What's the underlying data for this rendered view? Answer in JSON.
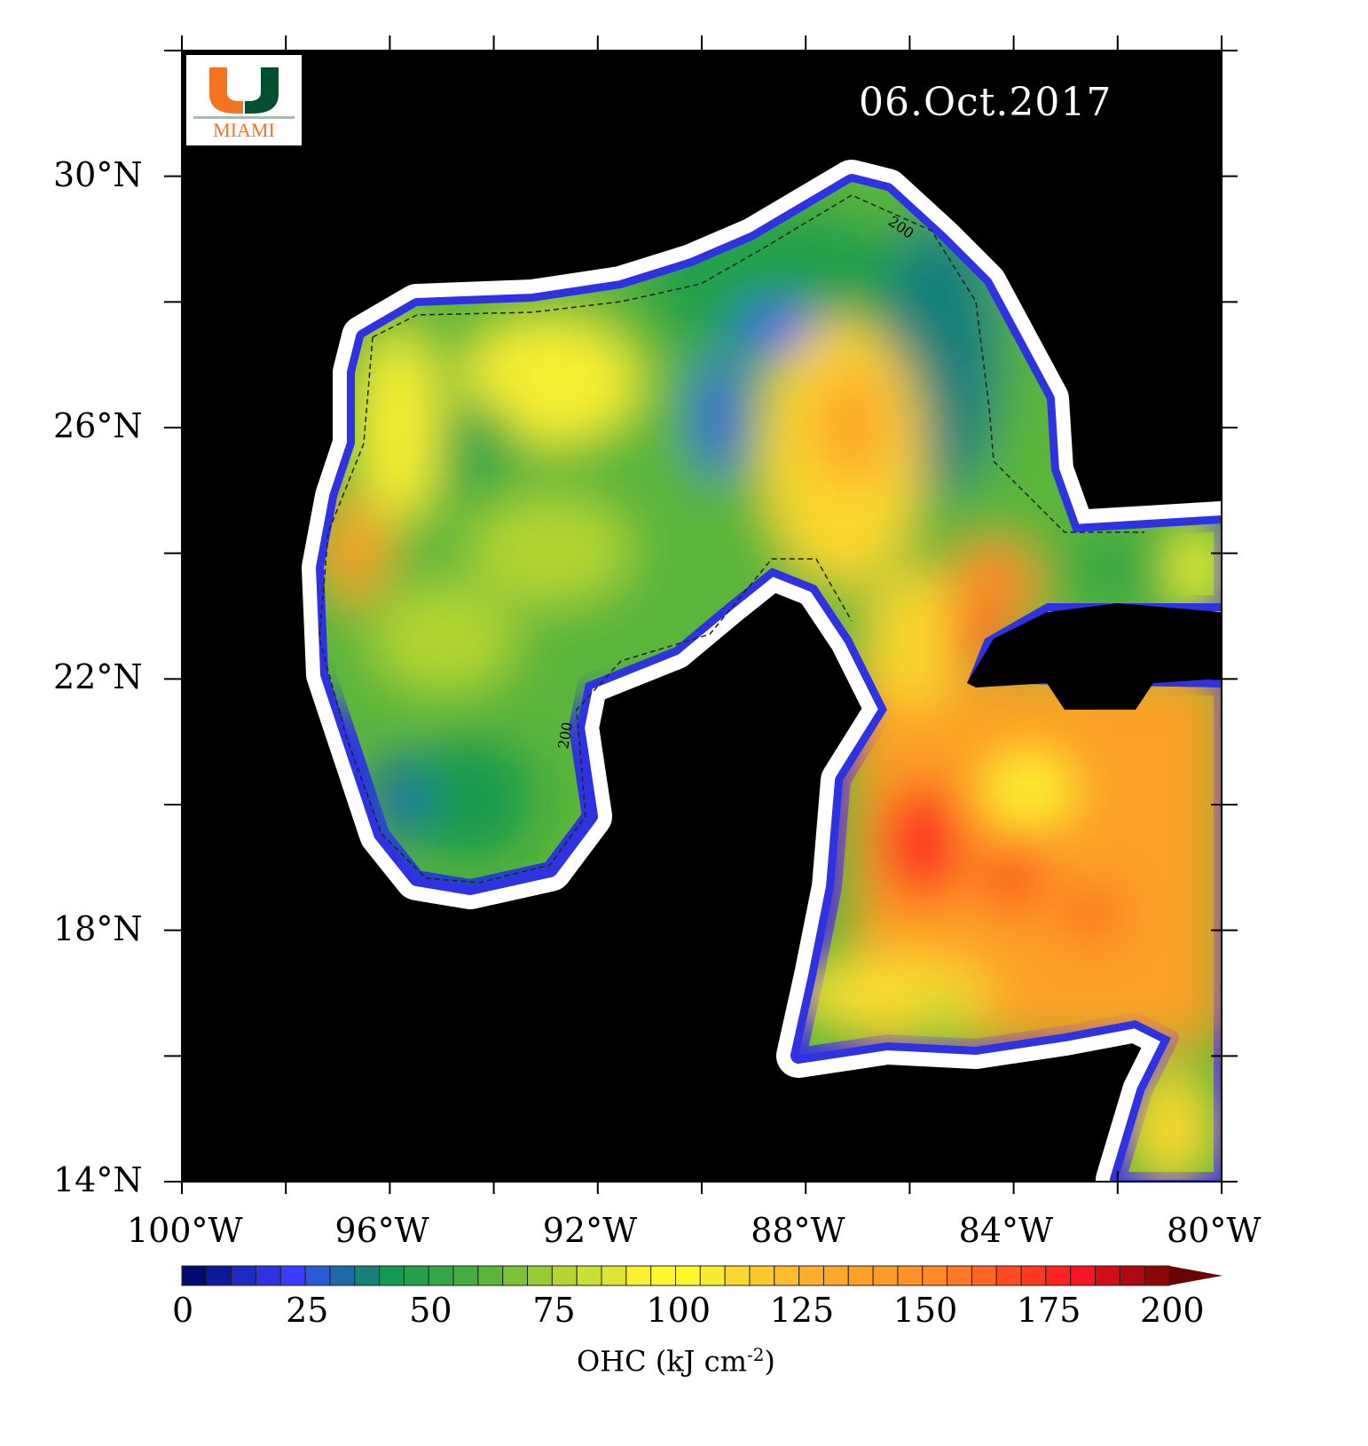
{
  "map": {
    "date_label": "06.Oct.2017",
    "extent": {
      "lon": [
        -100,
        -80
      ],
      "lat": [
        14,
        32
      ]
    },
    "lon_ticks": [
      -100,
      -98,
      -96,
      -94,
      -92,
      -90,
      -88,
      -86,
      -84,
      -82,
      -80
    ],
    "lon_labels": [
      {
        "lon": -100,
        "text": "100°W"
      },
      {
        "lon": -96,
        "text": "96°W"
      },
      {
        "lon": -92,
        "text": "92°W"
      },
      {
        "lon": -88,
        "text": "88°W"
      },
      {
        "lon": -84,
        "text": "84°W"
      },
      {
        "lon": -80,
        "text": "80°W"
      }
    ],
    "lat_ticks": [
      14,
      16,
      18,
      20,
      22,
      24,
      26,
      28,
      30
    ],
    "lat_labels": [
      {
        "lat": 30,
        "text": "30°N"
      },
      {
        "lat": 26,
        "text": "26°N"
      },
      {
        "lat": 22,
        "text": "22°N"
      },
      {
        "lat": 18,
        "text": "18°N"
      },
      {
        "lat": 14,
        "text": "14°N"
      }
    ],
    "contour_label": "200",
    "land_color": "#000000",
    "shelf_color": "#ffffff"
  },
  "logo": {
    "text": "MIAMI",
    "orange": "#f47321",
    "green": "#005030"
  },
  "colorbar": {
    "title": "OHC (kJ cm",
    "title_exp": "-2",
    "title_end": ")",
    "min": 0,
    "max": 200,
    "step": 5,
    "tick_labels": [
      "0",
      "25",
      "50",
      "75",
      "100",
      "125",
      "150",
      "175",
      "200"
    ],
    "colors": [
      "#000a70",
      "#0c1a9a",
      "#1e2ac4",
      "#2e32e0",
      "#3a3cff",
      "#2a5ad6",
      "#1e6aa8",
      "#18807a",
      "#129a50",
      "#23a048",
      "#34a645",
      "#46ac40",
      "#5ab53a",
      "#7cc236",
      "#98cc34",
      "#b4d632",
      "#cae032",
      "#dce434",
      "#f8f030",
      "#fcf830",
      "#fcf82c",
      "#f8ec30",
      "#fcd82e",
      "#fcc82c",
      "#fcbc2c",
      "#fcb02c",
      "#fca82a",
      "#fca028",
      "#fc9a28",
      "#fc9228",
      "#fc8a26",
      "#fc7a26",
      "#fc6424",
      "#fc4a22",
      "#fc3820",
      "#fc2420",
      "#f81420",
      "#d40c18",
      "#b00810",
      "#8c0808"
    ],
    "over_color": "#6a0404"
  }
}
